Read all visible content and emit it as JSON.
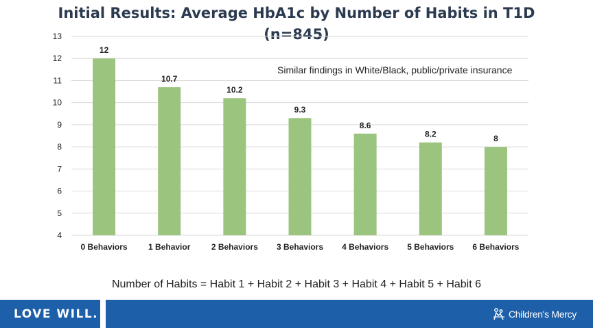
{
  "title_line1": "Initial Results: Average HbA1c by Number of Habits in T1D",
  "title_line2": "(n=845)",
  "note": "Similar findings in White/Black, public/private insurance",
  "formula": "Number of Habits = Habit 1 + Habit 2 + Habit 3 + Habit 4 + Habit 5 + Habit 6",
  "footer": {
    "tagline": "LOVE WILL.",
    "brand": "Children's Mercy",
    "brand_icon": "childrens-mercy-logo-icon"
  },
  "colors": {
    "bar": "#9bc47f",
    "footer": "#1d5fa8",
    "title": "#2b3a4f",
    "grid": "#d9d9d9"
  },
  "chart_data": {
    "type": "bar",
    "title": "Initial Results: Average HbA1c by Number of Habits in T1D (n=845)",
    "xlabel": "",
    "ylabel": "",
    "categories": [
      "0 Behaviors",
      "1 Behavior",
      "2 Behaviors",
      "3 Behaviors",
      "4 Behaviors",
      "5 Behaviors",
      "6 Behaviors"
    ],
    "values": [
      12,
      10.7,
      10.2,
      9.3,
      8.6,
      8.2,
      8
    ],
    "data_labels": [
      "12",
      "10.7",
      "10.2",
      "9.3",
      "8.6",
      "8.2",
      "8"
    ],
    "ylim": [
      4,
      13
    ],
    "yticks": [
      4,
      5,
      6,
      7,
      8,
      9,
      10,
      11,
      12,
      13
    ],
    "grid": true,
    "legend": "none"
  }
}
